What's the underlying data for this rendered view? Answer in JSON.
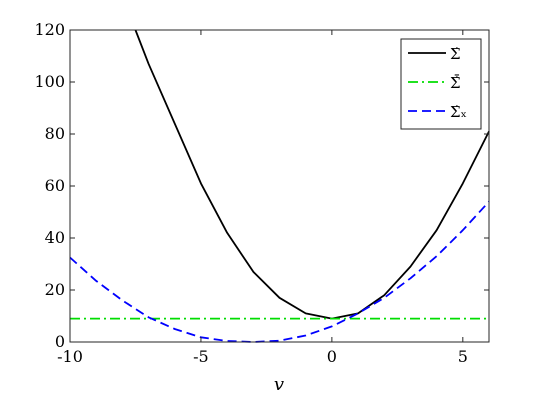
{
  "chart_data": {
    "type": "line",
    "title": "",
    "xlabel": "v",
    "ylabel": "",
    "xlim": [
      -10,
      6
    ],
    "ylim": [
      0,
      120
    ],
    "xticks": [
      -10,
      -5,
      0,
      5
    ],
    "yticks": [
      0,
      20,
      40,
      60,
      80,
      100,
      120
    ],
    "grid": false,
    "legend_position": "top-right",
    "series": [
      {
        "name": "Σ̇",
        "style": "solid",
        "color": "#000000",
        "x": [
          -7.5,
          -7,
          -6,
          -5,
          -4,
          -3,
          -2,
          -1,
          0,
          1,
          2,
          3,
          4,
          5,
          6
        ],
        "y": [
          120,
          107,
          84,
          61,
          42,
          27,
          17,
          11,
          9,
          11,
          18,
          29,
          43,
          61,
          81
        ]
      },
      {
        "name": "Σ̇̄",
        "style": "dashdot",
        "color": "#00dd00",
        "x": [
          -10,
          6
        ],
        "y": [
          9,
          9
        ]
      },
      {
        "name": "Σ̇ₓ",
        "style": "dashed",
        "color": "#0000ff",
        "x": [
          -10,
          -9,
          -8,
          -7,
          -6,
          -5,
          -4,
          -3,
          -2,
          -1,
          0,
          1,
          2,
          3,
          4,
          5,
          6
        ],
        "y": [
          32.5,
          23.5,
          16,
          9.5,
          5,
          1.8,
          0.4,
          0,
          0.5,
          2.5,
          6,
          11,
          17,
          24.5,
          33,
          43,
          54
        ]
      }
    ]
  }
}
